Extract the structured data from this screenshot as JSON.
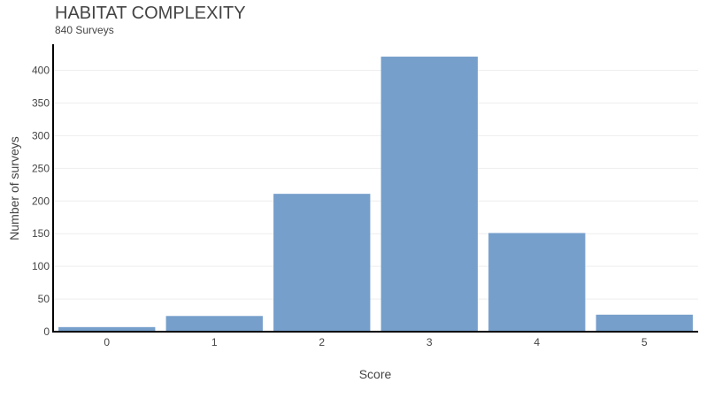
{
  "chart_data": {
    "type": "bar",
    "title": "HABITAT COMPLEXITY",
    "subtitle": "840 Surveys",
    "xlabel": "Score",
    "ylabel": "Number of surveys",
    "categories": [
      "0",
      "1",
      "2",
      "3",
      "4",
      "5"
    ],
    "values": [
      7,
      24,
      211,
      421,
      151,
      26
    ],
    "ylim": [
      0,
      440
    ],
    "yticks": [
      0,
      50,
      100,
      150,
      200,
      250,
      300,
      350,
      400
    ],
    "grid": true,
    "bar_color": "#769fcb"
  }
}
